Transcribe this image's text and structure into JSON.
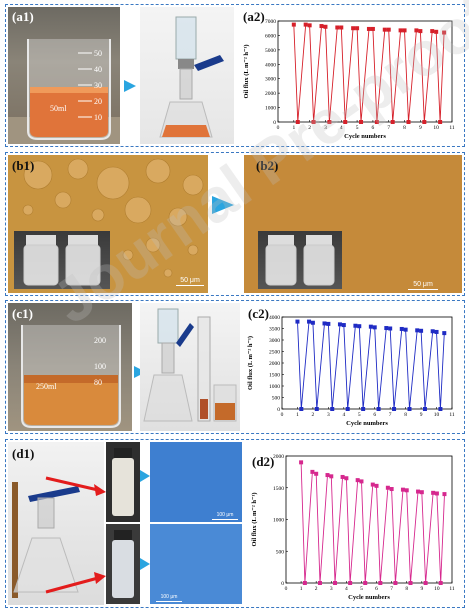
{
  "panels": {
    "a1": "(a1)",
    "a2": "(a2)",
    "b1": "(b1)",
    "b2": "(b2)",
    "c1": "(c1)",
    "c2": "(c2)",
    "d1": "(d1)",
    "d2": "(d2)"
  },
  "watermark": "Journal Pre-proof",
  "beaker_marks_a": [
    "50",
    "40",
    "30",
    "20",
    "10"
  ],
  "beaker_marks_c": [
    "200",
    "100",
    "80"
  ],
  "beaker_volume_a": "50ml",
  "beaker_volume_c": "250ml",
  "scale_bar_b": "50 μm",
  "scale_bar_d": "100 μm",
  "colors": {
    "a2": "#d6202a",
    "c2": "#1f2bc4",
    "d2": "#d6288e",
    "frame": "#3a78c2",
    "arrow": "#2aa5e0",
    "pointer": "#e31c1c"
  },
  "chart_data": [
    {
      "id": "a2",
      "type": "line",
      "xlabel": "Cycle numbers",
      "ylabel": "Oil flux (L m⁻² h⁻¹)",
      "xlim": [
        0,
        11
      ],
      "ylim": [
        0,
        7000
      ],
      "xticks": [
        "0",
        "1",
        "2",
        "3",
        "4",
        "5",
        "6",
        "7",
        "8",
        "9",
        "10",
        "11"
      ],
      "yticks": [
        "0",
        "1000",
        "2000",
        "3000",
        "4000",
        "5000",
        "6000",
        "7000"
      ],
      "x": [
        1,
        1.25,
        1.75,
        2,
        2.25,
        2.75,
        3,
        3.25,
        3.75,
        4,
        4.25,
        4.75,
        5,
        5.25,
        5.75,
        6,
        6.25,
        6.75,
        7,
        7.25,
        7.75,
        8,
        8.25,
        8.75,
        9,
        9.25,
        9.75,
        10,
        10.25,
        10.5
      ],
      "y": [
        6750,
        0,
        6750,
        6700,
        0,
        6650,
        6600,
        0,
        6550,
        6550,
        0,
        6500,
        6500,
        0,
        6450,
        6450,
        0,
        6400,
        6400,
        0,
        6350,
        6350,
        0,
        6350,
        6300,
        0,
        6300,
        6250,
        0,
        6200
      ],
      "marker": "square"
    },
    {
      "id": "c2",
      "type": "line",
      "xlabel": "Cycle numbers",
      "ylabel": "Oil flux (L m⁻² h⁻¹)",
      "xlim": [
        0,
        11
      ],
      "ylim": [
        0,
        4000
      ],
      "xticks": [
        "0",
        "1",
        "2",
        "3",
        "4",
        "5",
        "6",
        "7",
        "8",
        "9",
        "10",
        "11"
      ],
      "yticks": [
        "0",
        "500",
        "1000",
        "1500",
        "2000",
        "2500",
        "3000",
        "3500",
        "4000"
      ],
      "x": [
        1,
        1.25,
        1.75,
        2,
        2.25,
        2.75,
        3,
        3.25,
        3.75,
        4,
        4.25,
        4.75,
        5,
        5.25,
        5.75,
        6,
        6.25,
        6.75,
        7,
        7.25,
        7.75,
        8,
        8.25,
        8.75,
        9,
        9.25,
        9.75,
        10,
        10.25,
        10.5
      ],
      "y": [
        3800,
        0,
        3800,
        3750,
        0,
        3720,
        3700,
        0,
        3680,
        3650,
        0,
        3620,
        3600,
        0,
        3580,
        3550,
        0,
        3520,
        3500,
        0,
        3480,
        3450,
        0,
        3420,
        3400,
        0,
        3380,
        3350,
        0,
        3300
      ],
      "marker": "square"
    },
    {
      "id": "d2",
      "type": "line",
      "xlabel": "Cycle numbers",
      "ylabel": "Oil flux (L m⁻² h⁻¹)",
      "xlim": [
        0,
        11
      ],
      "ylim": [
        0,
        2000
      ],
      "xticks": [
        "0",
        "1",
        "2",
        "3",
        "4",
        "5",
        "6",
        "7",
        "8",
        "9",
        "10",
        "11"
      ],
      "yticks": [
        "0",
        "500",
        "1000",
        "1500",
        "2000"
      ],
      "x": [
        1,
        1.25,
        1.75,
        2,
        2.25,
        2.75,
        3,
        3.25,
        3.75,
        4,
        4.25,
        4.75,
        5,
        5.25,
        5.75,
        6,
        6.25,
        6.75,
        7,
        7.25,
        7.75,
        8,
        8.25,
        8.75,
        9,
        9.25,
        9.75,
        10,
        10.25,
        10.5
      ],
      "y": [
        1900,
        0,
        1750,
        1720,
        0,
        1700,
        1680,
        0,
        1670,
        1650,
        0,
        1620,
        1600,
        0,
        1550,
        1530,
        0,
        1500,
        1480,
        0,
        1470,
        1460,
        0,
        1440,
        1430,
        0,
        1420,
        1410,
        0,
        1400
      ],
      "marker": "square"
    }
  ]
}
